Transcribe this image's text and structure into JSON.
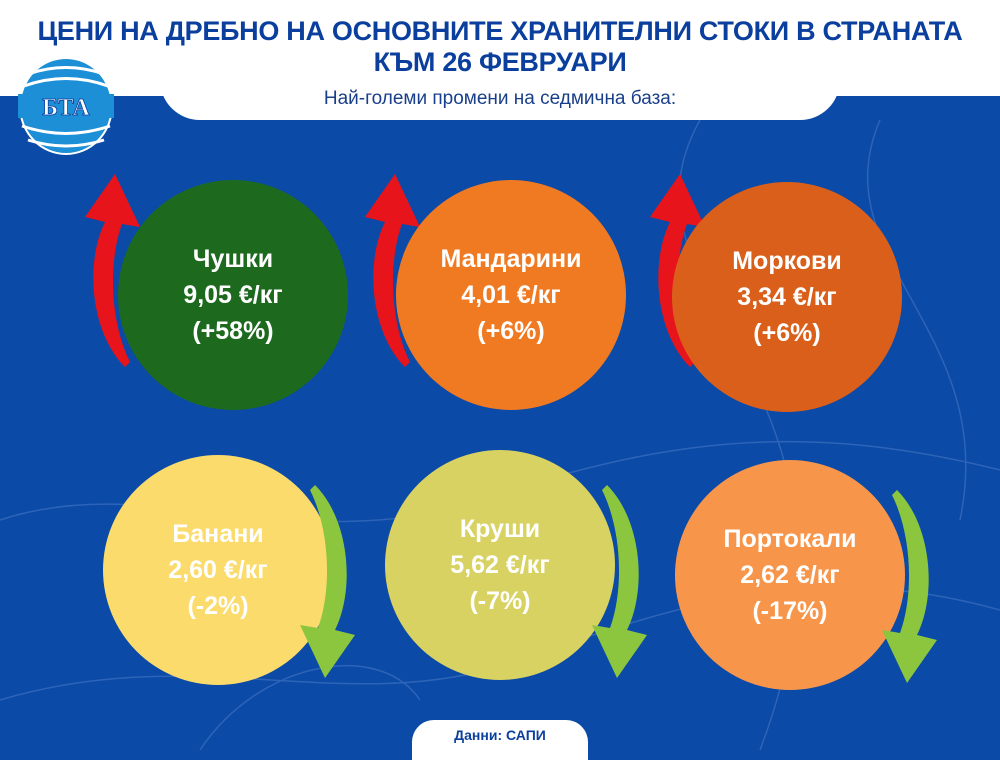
{
  "header": {
    "title_line1": "ЦЕНИ НА ДРЕБНО НА ОСНОВНИТЕ ХРАНИТЕЛНИ СТОКИ В СТРАНАТА",
    "title_line2": "КЪМ 26 ФЕВРУАРИ",
    "subtitle": "Най-големи промени на седмична база:",
    "logo_text": "БТА"
  },
  "colors": {
    "background": "#0b4aa6",
    "up_arrow": "#e8141c",
    "down_arrow": "#8cc63f"
  },
  "items": [
    {
      "name": "Чушки",
      "price": "9,05 €/кг",
      "change": "(+58%)",
      "direction": "up",
      "icon": "pepper-icon",
      "color": "#1d6a1f"
    },
    {
      "name": "Мандарини",
      "price": "4,01 €/кг",
      "change": "(+6%)",
      "direction": "up",
      "icon": "mandarin-icon",
      "color": "#f07a22"
    },
    {
      "name": "Моркови",
      "price": "3,34 €/кг",
      "change": "(+6%)",
      "direction": "up",
      "icon": "carrot-icon",
      "color": "#d95f1b"
    },
    {
      "name": "Банани",
      "price": "2,60 €/кг",
      "change": "(-2%)",
      "direction": "down",
      "icon": "banana-icon",
      "color": "#fbdb6c"
    },
    {
      "name": "Круши",
      "price": "5,62 €/кг",
      "change": "(-7%)",
      "direction": "down",
      "icon": "pear-icon",
      "color": "#d8d262"
    },
    {
      "name": "Портокали",
      "price": "2,62 €/кг",
      "change": "(-17%)",
      "direction": "down",
      "icon": "orange-icon",
      "color": "#f7964b"
    }
  ],
  "footer": {
    "source": "Данни: САПИ"
  }
}
